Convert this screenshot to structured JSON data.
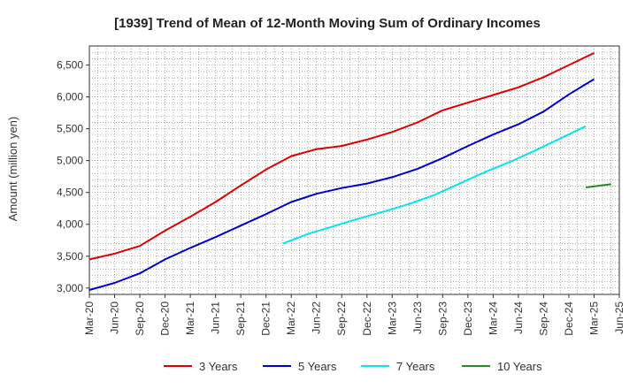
{
  "chart_data": {
    "type": "line",
    "title": "[1939]  Trend of Mean of 12-Month Moving Sum of Ordinary Incomes",
    "xlabel": "",
    "ylabel": "Amount (million yen)",
    "ylim": [
      2900,
      6800
    ],
    "yticks": [
      3000,
      3500,
      4000,
      4500,
      5000,
      5500,
      6000,
      6500
    ],
    "ytick_labels": [
      "3,000",
      "3,500",
      "4,000",
      "4,500",
      "5,000",
      "5,500",
      "6,000",
      "6,500"
    ],
    "x_categories": [
      "Mar-20",
      "Jun-20",
      "Sep-20",
      "Dec-20",
      "Mar-21",
      "Jun-21",
      "Sep-21",
      "Dec-21",
      "Mar-22",
      "Jun-22",
      "Sep-22",
      "Dec-22",
      "Mar-23",
      "Jun-23",
      "Sep-23",
      "Dec-23",
      "Mar-24",
      "Jun-24",
      "Sep-24",
      "Dec-24",
      "Mar-25",
      "Jun-25"
    ],
    "grid": true,
    "legend_position": "bottom",
    "series": [
      {
        "name": "3 Years",
        "color": "#dd0000",
        "start_index": 0,
        "values": [
          3450,
          3540,
          3660,
          3900,
          4120,
          4350,
          4610,
          4860,
          5070,
          5180,
          5230,
          5330,
          5450,
          5600,
          5790,
          5910,
          6030,
          6150,
          6310,
          6500,
          6690
        ]
      },
      {
        "name": "5 Years",
        "color": "#0000cc",
        "start_index": 0,
        "values": [
          2970,
          3080,
          3230,
          3450,
          3630,
          3800,
          3980,
          4160,
          4350,
          4480,
          4570,
          4640,
          4740,
          4870,
          5040,
          5230,
          5410,
          5570,
          5770,
          6040,
          6280
        ]
      },
      {
        "name": "7 Years",
        "color": "#00e5ee",
        "start_index": 7.67,
        "values": [
          3700,
          3850,
          3970,
          4090,
          4200,
          4320,
          4460,
          4640,
          4820,
          4980,
          5160,
          5350,
          5540
        ]
      },
      {
        "name": "10 Years",
        "color": "#228b22",
        "start_index": 19.67,
        "values": [
          4580,
          4630
        ]
      }
    ]
  }
}
